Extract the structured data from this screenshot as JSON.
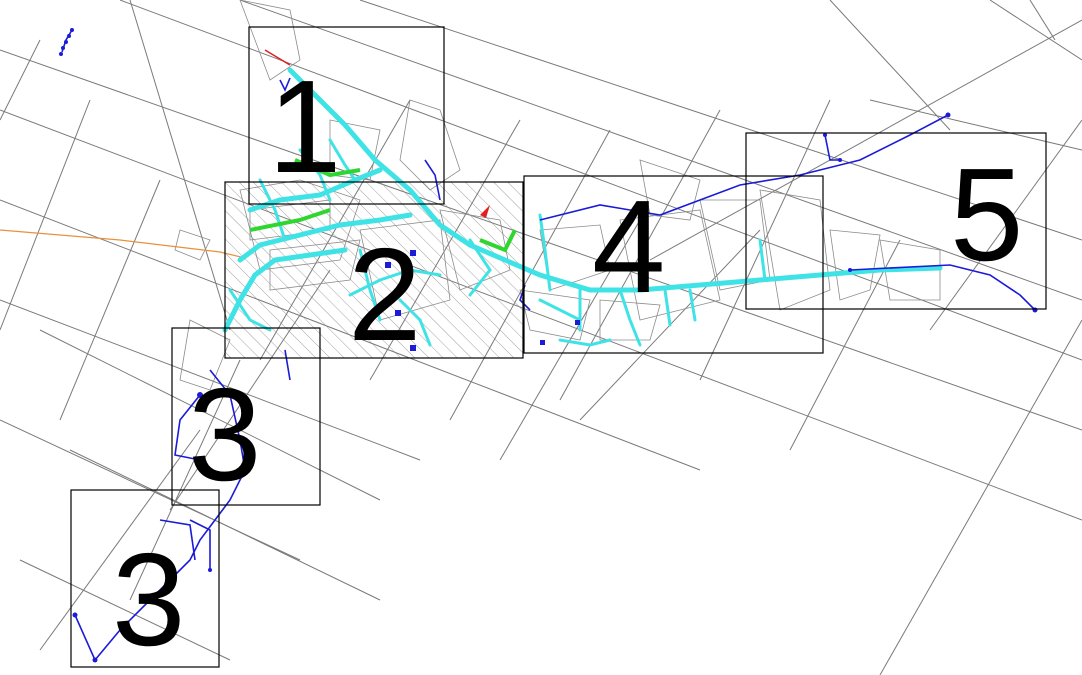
{
  "map": {
    "zones": [
      {
        "id": "1",
        "label": "1"
      },
      {
        "id": "2",
        "label": "2"
      },
      {
        "id": "3a",
        "label": "3"
      },
      {
        "id": "3b",
        "label": "3"
      },
      {
        "id": "4",
        "label": "4"
      },
      {
        "id": "5",
        "label": "5"
      }
    ],
    "colors": {
      "main_pipe": "#3fe3e6",
      "branch_pipe": "#1b1bd8",
      "green_pipe": "#2fd62f",
      "orange_line": "#e8913a",
      "grid": "#7a7a7a",
      "zone_border": "#000000"
    }
  }
}
